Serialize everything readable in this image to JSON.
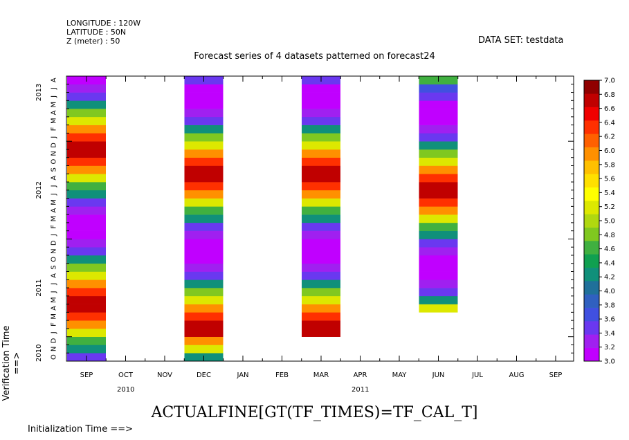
{
  "header": {
    "longitude": "LONGITUDE : 120W",
    "latitude": "LATITUDE : 50N",
    "z": "Z (meter) : 50",
    "dataset": "DATA SET: testdata",
    "title": "Forecast series of 4 datasets patterned on forecast24",
    "variable": "ACTUALFINE[GT(TF_TIMES)=TF_CAL_T]",
    "xlabel": "Initialization Time ==>",
    "ylabel": "Verification Time ==>"
  },
  "chart_data": {
    "type": "heatmap",
    "title": "Forecast series of 4 datasets patterned on forecast24",
    "xlabel": "Initialization Time ==>",
    "ylabel": "Verification Time ==>",
    "x_ticks": [
      "SEP",
      "OCT",
      "NOV",
      "DEC",
      "JAN",
      "FEB",
      "MAR",
      "APR",
      "MAY",
      "JUN",
      "JUL",
      "AUG",
      "SEP"
    ],
    "x_years": [
      {
        "label": "2010",
        "at": 1.5
      },
      {
        "label": "2011",
        "at": 7.5
      }
    ],
    "y_months": [
      "O",
      "N",
      "D",
      "J",
      "F",
      "M",
      "A",
      "M",
      "J",
      "J",
      "A",
      "S",
      "O",
      "N",
      "D",
      "J",
      "F",
      "M",
      "A",
      "M",
      "J",
      "J",
      "A",
      "S",
      "O",
      "N",
      "D",
      "J",
      "F",
      "M",
      "A",
      "M",
      "J",
      "J",
      "A"
    ],
    "y_years": [
      {
        "label": "2010",
        "at": 1
      },
      {
        "label": "2011",
        "at": 9
      },
      {
        "label": "2012",
        "at": 21
      },
      {
        "label": "2013",
        "at": 33
      }
    ],
    "colorbar": {
      "min": 3.0,
      "max": 7.0,
      "step": 0.2,
      "labels": [
        "3.0",
        "3.2",
        "3.4",
        "3.6",
        "3.8",
        "4.0",
        "4.2",
        "4.4",
        "4.6",
        "4.8",
        "5.0",
        "5.2",
        "5.4",
        "5.6",
        "5.8",
        "6.0",
        "6.2",
        "6.4",
        "6.6",
        "6.8",
        "7.0"
      ],
      "colors": [
        "#c000ff",
        "#a020f0",
        "#6a38f0",
        "#4050e0",
        "#3060c0",
        "#20709a",
        "#10907a",
        "#10a050",
        "#40b040",
        "#80c820",
        "#b0d810",
        "#dde800",
        "#ffff00",
        "#ffe000",
        "#ffc000",
        "#ff9000",
        "#ff6000",
        "#ff3000",
        "#f00000",
        "#c00000",
        "#900000"
      ]
    },
    "series": [
      {
        "init_month": 0,
        "start_row": 0,
        "values": [
          3.0,
          3.1,
          3.3,
          3.5,
          4.3,
          4.8,
          5.3,
          6.1,
          6.5,
          6.9,
          6.9,
          6.4,
          6.1,
          5.3,
          4.9,
          4.3,
          3.5,
          3.3,
          3.1,
          3.0,
          3.1,
          3.3,
          3.5,
          4.3,
          4.8,
          5.3,
          6.1,
          6.5,
          6.9,
          6.9,
          6.4,
          6.1,
          5.3,
          4.9,
          4.3,
          3.5,
          3.2,
          3.0
        ]
      },
      {
        "init_month": 3,
        "start_row": 3,
        "values": [
          4.3,
          5.2,
          6.1,
          6.9,
          6.9,
          6.4,
          6.1,
          5.3,
          4.9,
          4.3,
          3.5,
          3.3,
          3.1,
          3.0,
          3.1,
          3.3,
          3.5,
          4.3,
          4.8,
          5.3,
          6.1,
          6.5,
          6.9,
          6.9,
          6.4,
          6.1,
          5.3,
          4.9,
          4.3,
          3.5,
          3.3,
          3.1,
          3.0,
          3.1,
          3.5,
          3.8,
          4.7
        ]
      },
      {
        "init_month": 6,
        "start_row": 6,
        "values": [
          6.9,
          6.9,
          6.4,
          6.1,
          5.3,
          4.9,
          4.3,
          3.5,
          3.3,
          3.1,
          3.0,
          3.1,
          3.3,
          3.5,
          4.3,
          4.8,
          5.3,
          6.1,
          6.5,
          6.9,
          6.9,
          6.4,
          6.1,
          5.3,
          4.9,
          4.3,
          3.5,
          3.3,
          3.1,
          3.0,
          3.1,
          3.5,
          3.8,
          4.7,
          5.9,
          6.3,
          6.9
        ]
      },
      {
        "init_month": 9,
        "start_row": 9,
        "values": [
          5.2,
          4.3,
          3.5,
          3.3,
          3.1,
          3.0,
          3.1,
          3.3,
          3.5,
          4.3,
          4.8,
          5.3,
          6.1,
          6.5,
          6.9,
          6.9,
          6.4,
          6.1,
          5.3,
          4.9,
          4.3,
          3.5,
          3.3,
          3.1,
          3.0,
          3.1,
          3.5,
          3.8,
          4.7,
          5.9,
          6.3,
          6.9,
          6.9,
          6.5,
          6.1,
          5.0
        ]
      }
    ]
  }
}
